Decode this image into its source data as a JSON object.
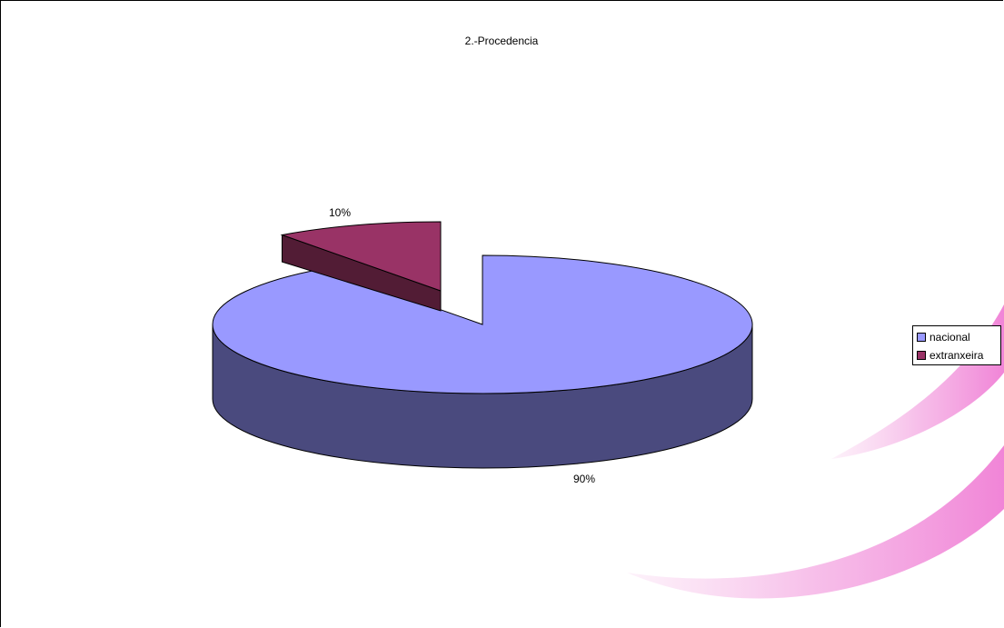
{
  "chart_data": {
    "type": "pie",
    "title": "2.-Procedencia",
    "categories": [
      "nacional",
      "extranxeira"
    ],
    "values": [
      90,
      10
    ],
    "data_labels": [
      "90%",
      "10%"
    ],
    "colors": [
      "#9999ff",
      "#993366"
    ],
    "side_colors": [
      "#4a4a7e",
      "#521c35"
    ],
    "legend_position": "right",
    "three_d": true,
    "exploded_slice": "extranxeira"
  }
}
